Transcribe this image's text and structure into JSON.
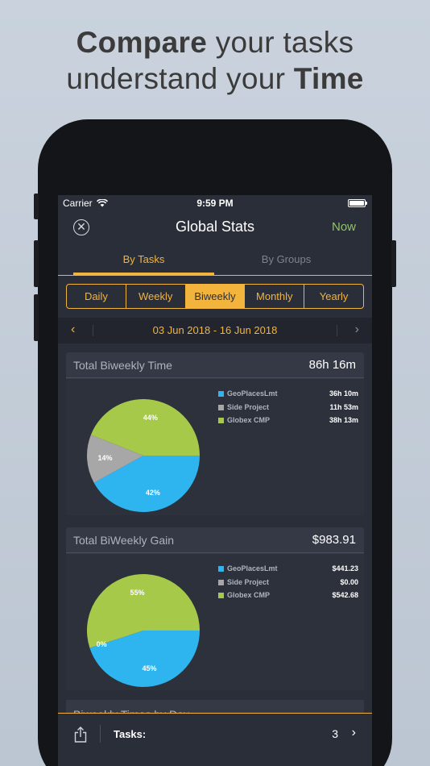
{
  "headline": {
    "line1_bold": "Compare",
    "line1_rest": " your tasks",
    "line2_rest": "understand your ",
    "line2_bold": "Time"
  },
  "status_bar": {
    "carrier": "Carrier",
    "time": "9:59 PM"
  },
  "nav": {
    "title": "Global Stats",
    "action": "Now"
  },
  "tabs": [
    {
      "label": "By Tasks",
      "active": true
    },
    {
      "label": "By Groups",
      "active": false
    }
  ],
  "segments": [
    {
      "label": "Daily",
      "active": false
    },
    {
      "label": "Weekly",
      "active": false
    },
    {
      "label": "Biweekly",
      "active": true
    },
    {
      "label": "Monthly",
      "active": false
    },
    {
      "label": "Yearly",
      "active": false
    }
  ],
  "date_range": "03 Jun 2018 - 16 Jun 2018",
  "colors": {
    "accent": "#f2b43c",
    "now": "#8fc564",
    "blue": "#2eb5f0",
    "gray": "#a7a7a7",
    "green": "#a6c94a"
  },
  "cards": [
    {
      "title": "Total Biweekly Time",
      "value": "86h 16m",
      "legend": [
        {
          "name": "GeoPlacesLmt",
          "value": "36h 10m",
          "color": "#2eb5f0"
        },
        {
          "name": "Side Project",
          "value": "11h 53m",
          "color": "#a7a7a7"
        },
        {
          "name": "Globex CMP",
          "value": "38h 13m",
          "color": "#a6c94a"
        }
      ],
      "chart_data": {
        "type": "pie",
        "labels": [
          "GeoPlacesLmt",
          "Side Project",
          "Globex CMP"
        ],
        "values": [
          42,
          14,
          44
        ],
        "value_labels": [
          "42%",
          "14%",
          "44%"
        ]
      }
    },
    {
      "title": "Total BiWeekly Gain",
      "value": "$983.91",
      "legend": [
        {
          "name": "GeoPlacesLmt",
          "value": "$441.23",
          "color": "#2eb5f0"
        },
        {
          "name": "Side Project",
          "value": "$0.00",
          "color": "#a7a7a7"
        },
        {
          "name": "Globex CMP",
          "value": "$542.68",
          "color": "#a6c94a"
        }
      ],
      "chart_data": {
        "type": "pie",
        "labels": [
          "GeoPlacesLmt",
          "Side Project",
          "Globex CMP"
        ],
        "values": [
          45,
          0,
          55
        ],
        "value_labels": [
          "45%",
          "0%",
          "55%"
        ]
      }
    }
  ],
  "partial_card_title": "Biweekly Times by Day",
  "toolbar": {
    "tasks_label": "Tasks:",
    "tasks_count": "3",
    "chevron": "›"
  }
}
